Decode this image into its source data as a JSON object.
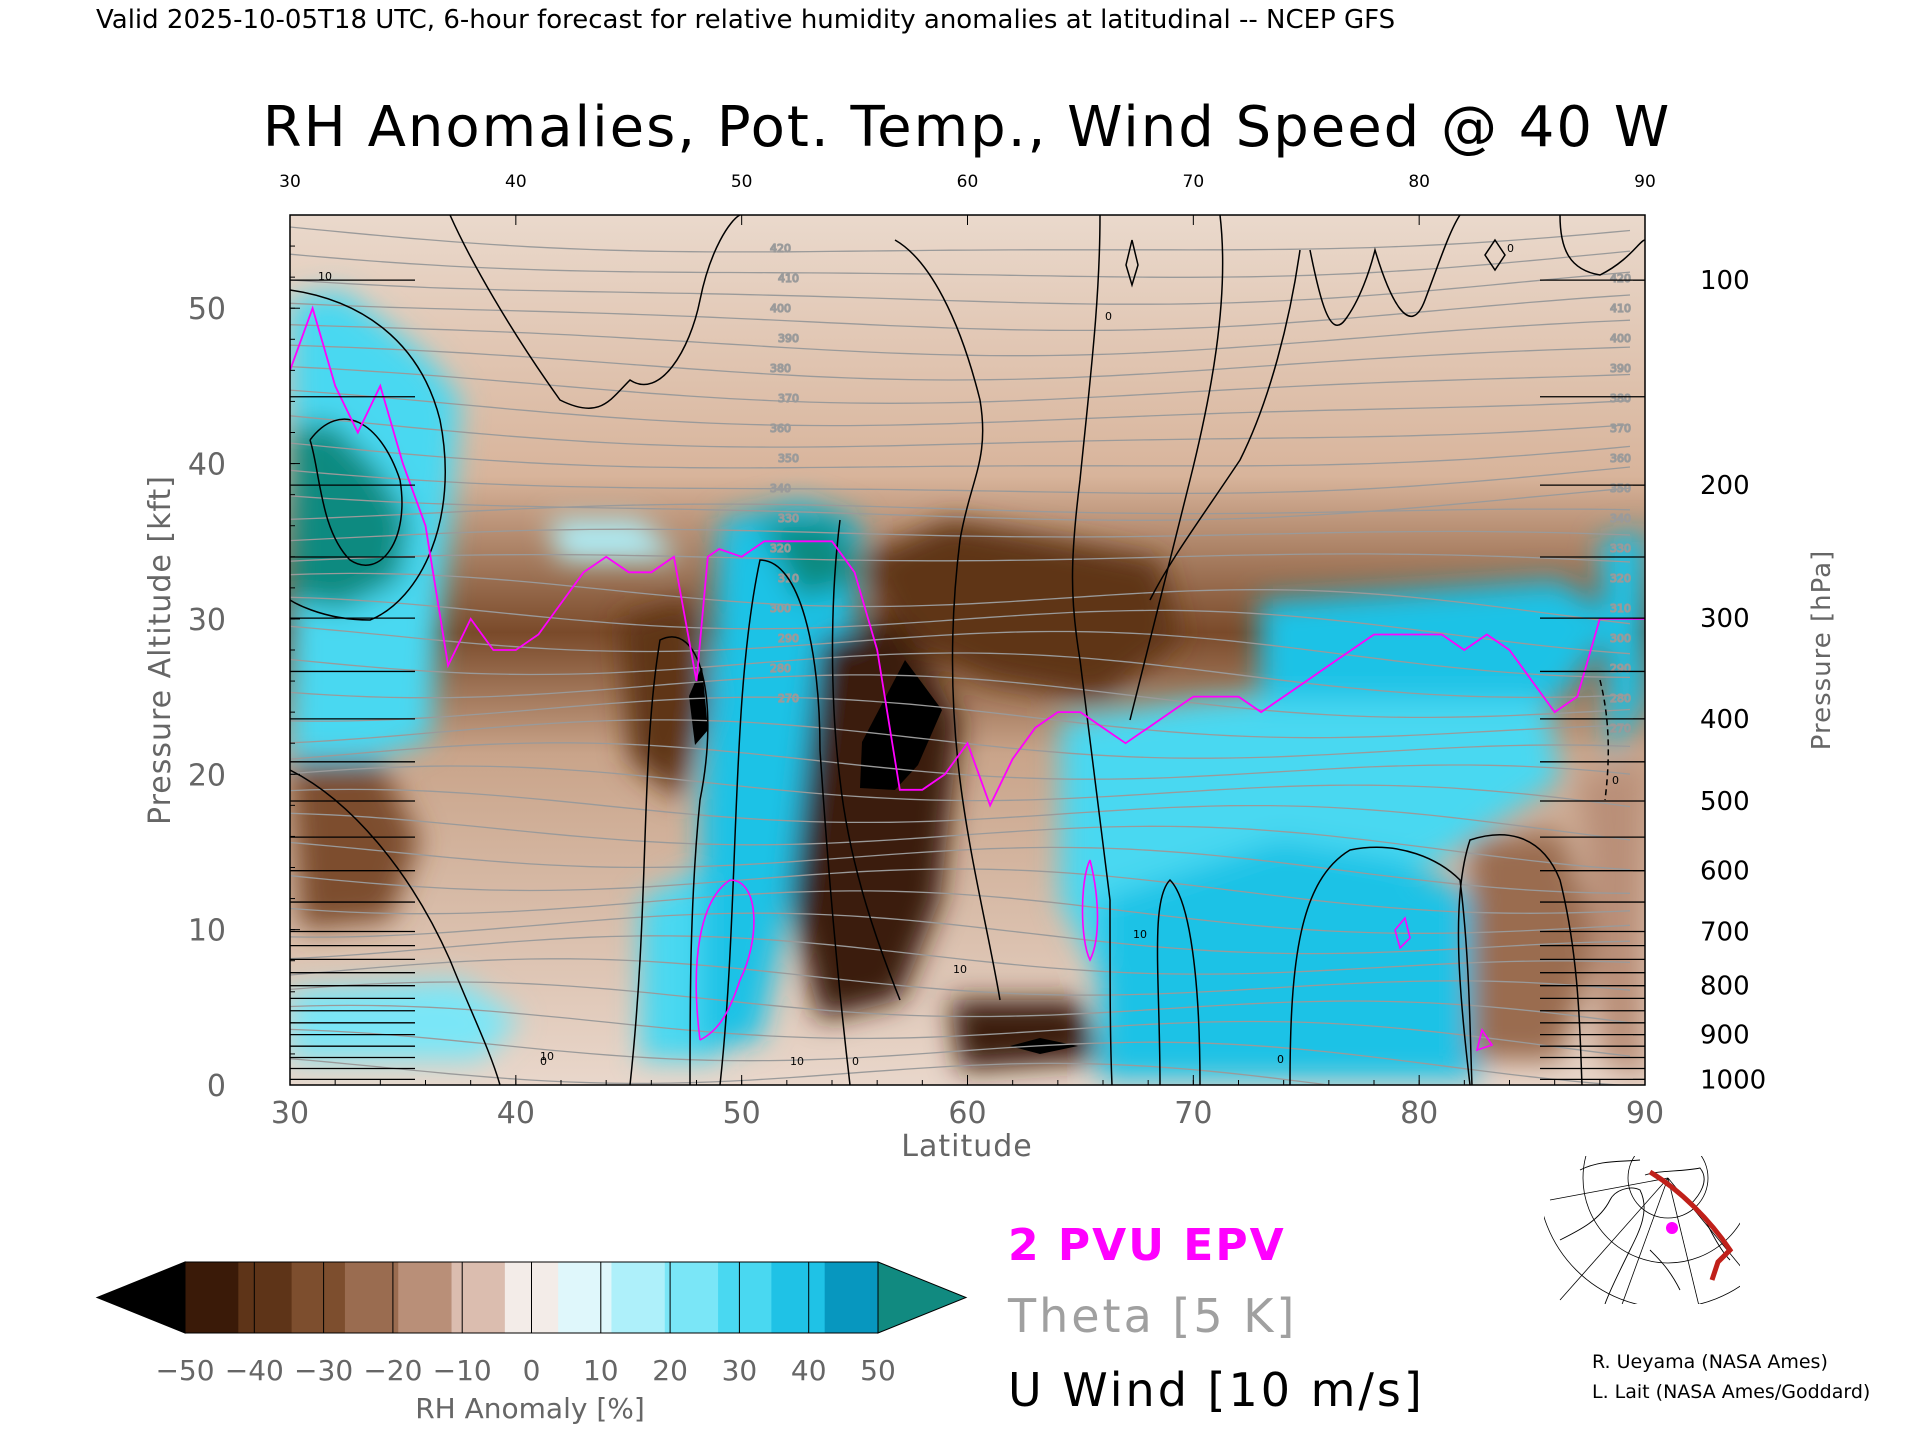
{
  "header": "Valid 2025-10-05T18 UTC, 6-hour forecast for relative humidity anomalies at latitudinal -- NCEP GFS",
  "chart_data": {
    "type": "heatmap",
    "title": "RH Anomalies, Pot. Temp., Wind Speed @ 40 W",
    "xlabel": "Latitude",
    "ylabel_left": "Pressure Altitude [kft]",
    "ylabel_right": "Pressure [hPa]",
    "xlim": [
      30,
      90
    ],
    "ylim": [
      0,
      56
    ],
    "x_ticks": [
      "30",
      "40",
      "50",
      "60",
      "70",
      "80",
      "90"
    ],
    "y_ticks": [
      "0",
      "10",
      "20",
      "30",
      "40",
      "50"
    ],
    "pressure_ticks": [
      "100",
      "200",
      "300",
      "400",
      "500",
      "600",
      "700",
      "800",
      "900",
      "1000"
    ],
    "pressure_levels_hpa": [
      100,
      200,
      300,
      400,
      500,
      600,
      700,
      800,
      900,
      1000
    ],
    "colorbar": {
      "label": "RH Anomaly [%]",
      "ticks": [
        "−50",
        "−40",
        "−30",
        "−20",
        "−10",
        "0",
        "10",
        "20",
        "30",
        "40",
        "50"
      ],
      "colors": [
        "#000000",
        "#3a1a08",
        "#5e3418",
        "#7d4e2e",
        "#9a6c50",
        "#b98f78",
        "#dbbdaf",
        "#f3ece8",
        "#dff7fb",
        "#aef0fa",
        "#7ae6f7",
        "#49d8f1",
        "#1fc2e6",
        "#0797bf",
        "#118a80"
      ]
    },
    "legend": {
      "epv": "2 PVU EPV",
      "theta": "Theta [5 K]",
      "uwind": "U Wind [10 m/s]",
      "epv_color": "#ff00ff",
      "theta_color": "#a0a0a0",
      "uwind_color": "#000000"
    },
    "theta_labels": [
      "420",
      "410",
      "400",
      "390",
      "380",
      "370",
      "360",
      "350",
      "340",
      "330",
      "320",
      "310",
      "300",
      "290",
      "280",
      "270"
    ],
    "epv_2pvu_altitude_kft": [
      [
        30,
        46
      ],
      [
        31,
        50
      ],
      [
        32,
        45
      ],
      [
        33,
        42
      ],
      [
        34,
        45
      ],
      [
        35,
        40
      ],
      [
        36,
        36
      ],
      [
        37,
        27
      ],
      [
        38,
        30
      ],
      [
        39,
        28
      ],
      [
        40,
        28
      ],
      [
        41,
        29
      ],
      [
        42,
        31
      ],
      [
        43,
        33
      ],
      [
        44,
        34
      ],
      [
        45,
        33
      ],
      [
        46,
        33
      ],
      [
        47,
        34
      ],
      [
        48,
        26
      ],
      [
        48.5,
        34
      ],
      [
        49,
        34.5
      ],
      [
        50,
        34
      ],
      [
        51,
        35
      ],
      [
        52,
        35
      ],
      [
        53,
        35
      ],
      [
        54,
        35
      ],
      [
        55,
        33
      ],
      [
        56,
        28
      ],
      [
        57,
        19
      ],
      [
        58,
        19
      ],
      [
        59,
        20
      ],
      [
        60,
        22
      ],
      [
        61,
        18
      ],
      [
        62,
        21
      ],
      [
        63,
        23
      ],
      [
        64,
        24
      ],
      [
        65,
        24
      ],
      [
        66,
        23
      ],
      [
        67,
        22
      ],
      [
        68,
        23
      ],
      [
        69,
        24
      ],
      [
        70,
        25
      ],
      [
        71,
        25
      ],
      [
        72,
        25
      ],
      [
        73,
        24
      ],
      [
        74,
        25
      ],
      [
        75,
        26
      ],
      [
        76,
        27
      ],
      [
        77,
        28
      ],
      [
        78,
        29
      ],
      [
        79,
        29
      ],
      [
        80,
        29
      ],
      [
        81,
        29
      ],
      [
        82,
        28
      ],
      [
        83,
        29
      ],
      [
        84,
        28
      ],
      [
        85,
        26
      ],
      [
        86,
        24
      ],
      [
        87,
        25
      ],
      [
        88,
        30
      ],
      [
        89,
        30
      ],
      [
        90,
        30
      ]
    ],
    "uwind_contour_labels": [
      "10",
      "0",
      "10",
      "0",
      "10",
      "0",
      "10",
      "0",
      "0",
      "0",
      "10"
    ],
    "map_inset": {
      "transect": "40 W"
    },
    "credits": [
      "R. Ueyama (NASA Ames)",
      "L. Lait (NASA Ames/Goddard)"
    ]
  }
}
